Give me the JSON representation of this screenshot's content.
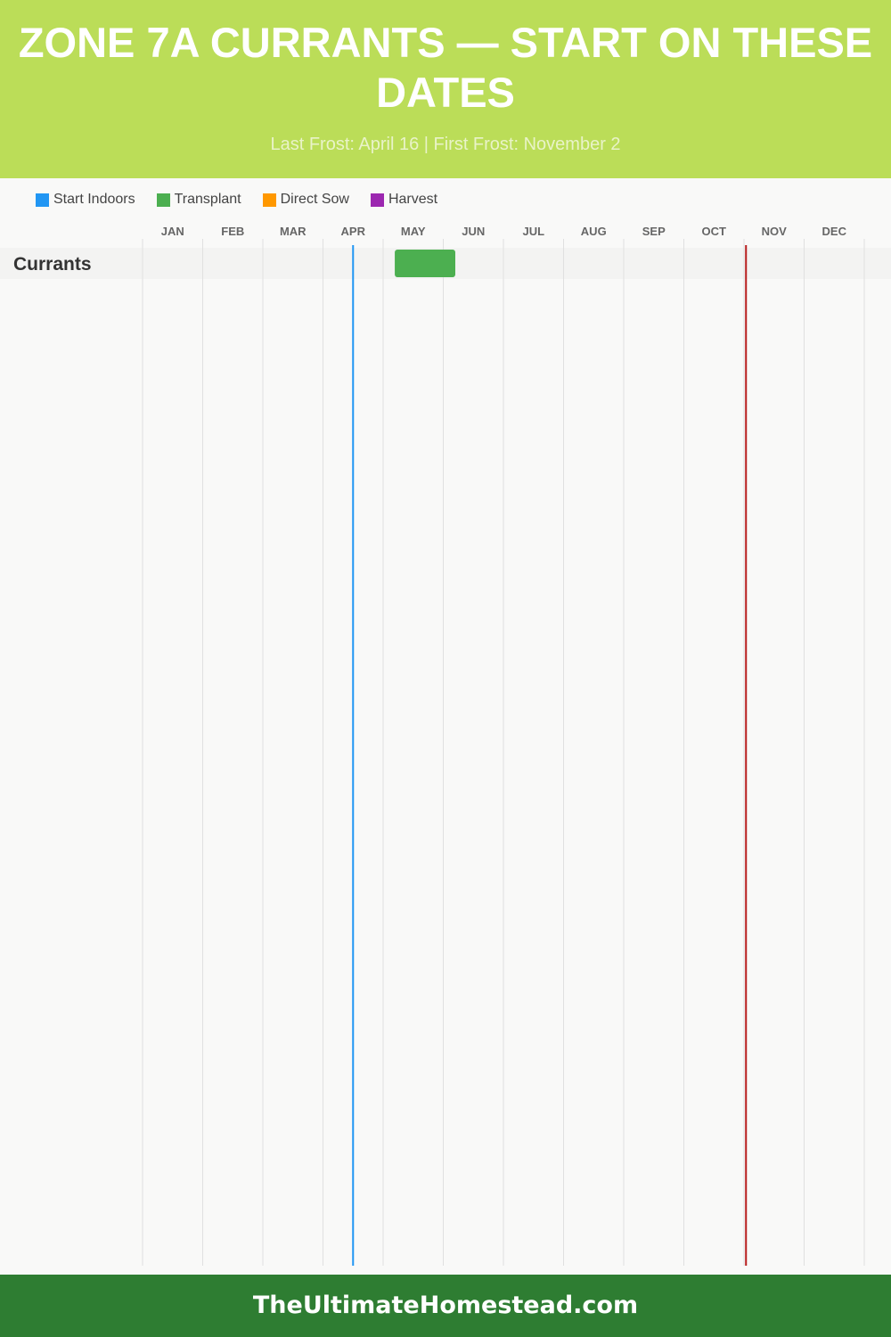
{
  "header": {
    "title": "ZONE 7A CURRANTS — START ON THESE DATES",
    "subtitle": "Last Frost: April 16 | First Frost: November 2"
  },
  "footer": {
    "text": "TheUltimateHomestead.com"
  },
  "chart_data": {
    "type": "gantt",
    "months": [
      "JAN",
      "FEB",
      "MAR",
      "APR",
      "MAY",
      "JUN",
      "JUL",
      "AUG",
      "SEP",
      "OCT",
      "NOV",
      "DEC"
    ],
    "legend": [
      {
        "name": "Start Indoors",
        "color": "#2196f3"
      },
      {
        "name": "Transplant",
        "color": "#4caf50"
      },
      {
        "name": "Direct Sow",
        "color": "#ff9800"
      },
      {
        "name": "Harvest",
        "color": "#9c27b0"
      }
    ],
    "rows": [
      {
        "name": "Currants",
        "bars": [
          {
            "type": "Transplant",
            "start": "05-07",
            "end": "06-07",
            "color": "#4caf50"
          }
        ]
      }
    ],
    "frost_lines": [
      {
        "label": "Last Frost",
        "date": "04-16",
        "color": "#2196f3"
      },
      {
        "label": "First Frost",
        "date": "11-02",
        "color": "#b71c1c"
      }
    ]
  }
}
